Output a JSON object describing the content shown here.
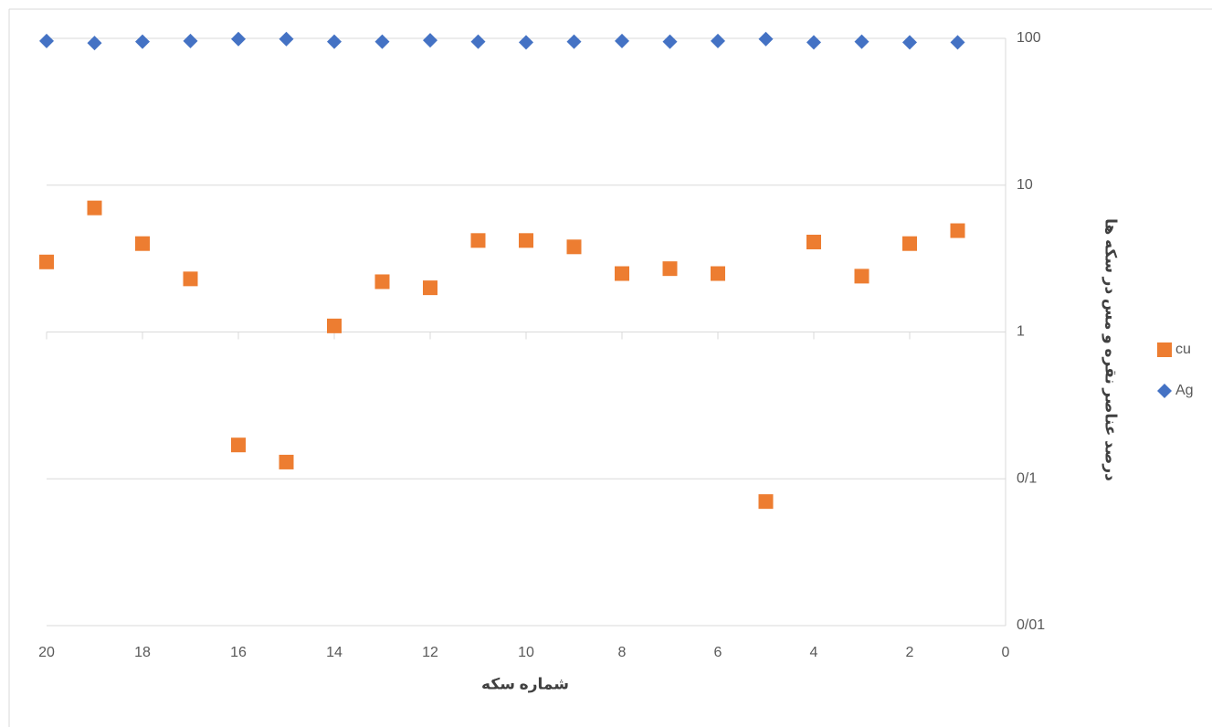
{
  "chart_data": {
    "type": "scatter",
    "x_label": "شماره سکه",
    "y_label": "درصد عناصر نقره و مس در سکه ها",
    "x": [
      20,
      19,
      18,
      17,
      16,
      15,
      14,
      13,
      12,
      11,
      10,
      9,
      8,
      7,
      6,
      5,
      4,
      3,
      2,
      1
    ],
    "series": [
      {
        "name": "cu",
        "color": "#ed7d31",
        "marker": "square",
        "values": [
          3.0,
          7.0,
          4.0,
          2.3,
          0.17,
          0.13,
          1.1,
          2.2,
          2.0,
          4.2,
          4.2,
          3.8,
          2.5,
          2.7,
          2.5,
          0.07,
          4.1,
          2.4,
          4.0,
          4.9
        ]
      },
      {
        "name": "Ag",
        "color": "#4472c4",
        "marker": "diamond",
        "values": [
          96,
          93,
          95,
          96,
          99,
          99,
          95,
          95,
          97,
          95,
          94,
          95,
          96,
          95,
          96,
          99,
          94,
          95,
          94,
          94
        ]
      }
    ],
    "xlim": [
      20,
      0
    ],
    "xticks": [
      20,
      18,
      16,
      14,
      12,
      10,
      8,
      6,
      4,
      2,
      0
    ],
    "ylim": [
      0.01,
      100
    ],
    "yticks": [
      {
        "value": 0.01,
        "label": "0/01"
      },
      {
        "value": 0.1,
        "label": "0/1"
      },
      1,
      10,
      100
    ],
    "log_y": true,
    "grid": true,
    "legend": "right"
  }
}
